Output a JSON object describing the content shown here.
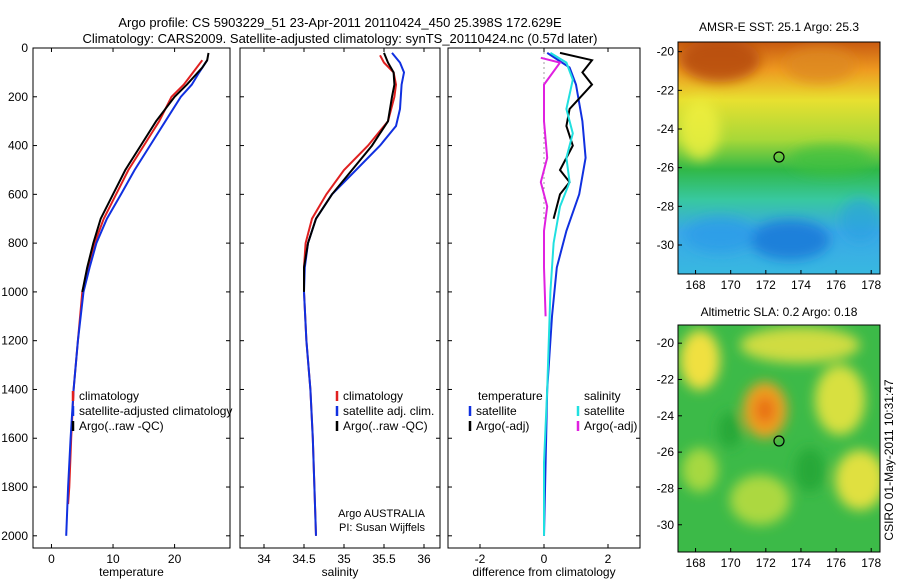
{
  "header": {
    "line1": "Argo profile: CS 5903229_51 23-Apr-2011 20110424_450 25.398S 172.629E",
    "line2": "Climatology: CARS2009. Satellite-adjusted climatology: synTS_20110424.nc (0.57d later)"
  },
  "side_stamp": "CSIRO 01-May-2011 10:31:47",
  "colors": {
    "red": "#e02020",
    "blue": "#1030e0",
    "black": "#000000",
    "cyan": "#20e0e0",
    "magenta": "#e020e0"
  },
  "chart_data": [
    {
      "type": "line",
      "id": "temperature",
      "xlabel": "temperature",
      "ylabel": "",
      "xlim": [
        -3,
        29
      ],
      "ylim": [
        2050,
        0
      ],
      "xticks": [
        0,
        10,
        20
      ],
      "yticks": [
        0,
        200,
        400,
        600,
        800,
        1000,
        1200,
        1400,
        1600,
        1800,
        2000
      ],
      "legend": {
        "position": "lower-right",
        "entries": [
          "climatology",
          "satellite-adjusted climatology",
          "Argo(..raw -QC)"
        ]
      },
      "series": [
        {
          "name": "climatology",
          "color": "red",
          "points": [
            [
              24.5,
              50
            ],
            [
              23,
              100
            ],
            [
              21.5,
              150
            ],
            [
              19.5,
              200
            ],
            [
              17.5,
              300
            ],
            [
              15,
              400
            ],
            [
              12.5,
              500
            ],
            [
              10.5,
              600
            ],
            [
              8.5,
              700
            ],
            [
              7,
              800
            ],
            [
              6,
              900
            ],
            [
              5,
              1000
            ],
            [
              4.3,
              1200
            ],
            [
              3.6,
              1400
            ],
            [
              3.2,
              1600
            ],
            [
              2.9,
              1800
            ],
            [
              2.7,
              1870
            ]
          ]
        },
        {
          "name": "satellite-adjusted climatology",
          "color": "blue",
          "points": [
            [
              25.3,
              50
            ],
            [
              24,
              100
            ],
            [
              22.8,
              150
            ],
            [
              21,
              200
            ],
            [
              18.5,
              300
            ],
            [
              16,
              400
            ],
            [
              13.5,
              500
            ],
            [
              11.3,
              600
            ],
            [
              9,
              700
            ],
            [
              7.3,
              800
            ],
            [
              6.2,
              900
            ],
            [
              5.2,
              1000
            ],
            [
              4.3,
              1200
            ],
            [
              3.6,
              1400
            ],
            [
              3.1,
              1600
            ],
            [
              2.7,
              1800
            ],
            [
              2.4,
              2000
            ]
          ]
        },
        {
          "name": "Argo(..raw -QC)",
          "color": "black",
          "points": [
            [
              25.5,
              20
            ],
            [
              25.3,
              50
            ],
            [
              24.5,
              80
            ],
            [
              22,
              150
            ],
            [
              20,
              200
            ],
            [
              17,
              300
            ],
            [
              14.5,
              400
            ],
            [
              12,
              500
            ],
            [
              10,
              600
            ],
            [
              8,
              700
            ],
            [
              6.8,
              800
            ],
            [
              5.8,
              900
            ],
            [
              5,
              1000
            ]
          ]
        }
      ]
    },
    {
      "type": "line",
      "id": "salinity",
      "xlabel": "salinity",
      "ylabel": "",
      "xlim": [
        33.7,
        36.2
      ],
      "ylim": [
        2050,
        0
      ],
      "xticks": [
        34,
        34.5,
        35,
        35.5,
        36
      ],
      "yticks": [
        0,
        200,
        400,
        600,
        800,
        1000,
        1200,
        1400,
        1600,
        1800,
        2000
      ],
      "legend": {
        "position": "lower-right",
        "entries": [
          "climatology",
          "satellite adj. clim.",
          "Argo(..raw -QC)"
        ]
      },
      "annotation": [
        "Argo AUSTRALIA",
        "PI: Susan Wijffels"
      ],
      "series": [
        {
          "name": "climatology",
          "color": "red",
          "points": [
            [
              35.45,
              30
            ],
            [
              35.5,
              60
            ],
            [
              35.62,
              100
            ],
            [
              35.65,
              150
            ],
            [
              35.63,
              200
            ],
            [
              35.55,
              300
            ],
            [
              35.3,
              400
            ],
            [
              35,
              500
            ],
            [
              34.78,
              600
            ],
            [
              34.6,
              700
            ],
            [
              34.52,
              800
            ],
            [
              34.5,
              900
            ],
            [
              34.5,
              1000
            ],
            [
              34.53,
              1200
            ],
            [
              34.58,
              1400
            ],
            [
              34.61,
              1600
            ],
            [
              34.63,
              1800
            ],
            [
              34.65,
              2000
            ]
          ]
        },
        {
          "name": "satellite adj. clim.",
          "color": "blue",
          "points": [
            [
              35.6,
              20
            ],
            [
              35.7,
              60
            ],
            [
              35.75,
              100
            ],
            [
              35.72,
              150
            ],
            [
              35.7,
              250
            ],
            [
              35.65,
              320
            ],
            [
              35.45,
              400
            ],
            [
              35.15,
              500
            ],
            [
              34.85,
              600
            ],
            [
              34.65,
              700
            ],
            [
              34.55,
              800
            ],
            [
              34.51,
              900
            ],
            [
              34.5,
              1000
            ],
            [
              34.53,
              1200
            ],
            [
              34.58,
              1400
            ],
            [
              34.61,
              1600
            ],
            [
              34.63,
              1800
            ],
            [
              34.65,
              2000
            ]
          ]
        },
        {
          "name": "Argo(..raw -QC)",
          "color": "black",
          "points": [
            [
              35.5,
              20
            ],
            [
              35.55,
              60
            ],
            [
              35.62,
              100
            ],
            [
              35.63,
              150
            ],
            [
              35.6,
              200
            ],
            [
              35.55,
              300
            ],
            [
              35.35,
              400
            ],
            [
              35.1,
              500
            ],
            [
              34.85,
              600
            ],
            [
              34.65,
              700
            ],
            [
              34.55,
              800
            ],
            [
              34.5,
              900
            ],
            [
              34.5,
              1000
            ]
          ]
        }
      ]
    },
    {
      "type": "line",
      "id": "difference",
      "xlabel": "difference from climatology",
      "ylabel": "",
      "xlim": [
        -3,
        3
      ],
      "ylim": [
        2050,
        0
      ],
      "xticks": [
        -2,
        0,
        2
      ],
      "yticks": [
        0,
        200,
        400,
        600,
        800,
        1000,
        1200,
        1400,
        1600,
        1800,
        2000
      ],
      "legend": {
        "position": "lower-center",
        "left_title": "temperature",
        "right_title": "salinity",
        "left_entries": [
          "satellite",
          "Argo(-adj)"
        ],
        "right_entries": [
          "satellite",
          "Argo(-adj)"
        ]
      },
      "series": [
        {
          "name": "temperature satellite",
          "color": "blue",
          "points": [
            [
              0.1,
              20
            ],
            [
              0.8,
              80
            ],
            [
              1,
              150
            ],
            [
              1.2,
              300
            ],
            [
              1.3,
              450
            ],
            [
              1.1,
              600
            ],
            [
              0.7,
              750
            ],
            [
              0.4,
              900
            ],
            [
              0.25,
              1100
            ],
            [
              0.1,
              1400
            ],
            [
              0.05,
              1700
            ],
            [
              0,
              2000
            ]
          ]
        },
        {
          "name": "temperature Argo(-adj)",
          "color": "black",
          "points": [
            [
              0.5,
              20
            ],
            [
              1.5,
              50
            ],
            [
              1.2,
              100
            ],
            [
              1.5,
              150
            ],
            [
              0.8,
              250
            ],
            [
              0.7,
              320
            ],
            [
              0.9,
              400
            ],
            [
              0.5,
              500
            ],
            [
              0.8,
              550
            ],
            [
              0.5,
              600
            ],
            [
              0.3,
              700
            ]
          ]
        },
        {
          "name": "salinity satellite",
          "color": "cyan",
          "points": [
            [
              0.2,
              20
            ],
            [
              0.7,
              60
            ],
            [
              0.9,
              130
            ],
            [
              0.7,
              250
            ],
            [
              0.9,
              350
            ],
            [
              0.7,
              450
            ],
            [
              0.8,
              550
            ],
            [
              0.5,
              650
            ],
            [
              0.3,
              800
            ],
            [
              0.2,
              1000
            ],
            [
              0.1,
              1400
            ],
            [
              0,
              1700
            ],
            [
              0,
              2000
            ]
          ]
        },
        {
          "name": "salinity Argo(-adj)",
          "color": "magenta",
          "points": [
            [
              -0.1,
              40
            ],
            [
              0.5,
              60
            ],
            [
              0,
              150
            ],
            [
              0,
              300
            ],
            [
              0.1,
              450
            ],
            [
              -0.1,
              550
            ],
            [
              0.1,
              650
            ],
            [
              0,
              750
            ],
            [
              0,
              900
            ],
            [
              0.05,
              1100
            ]
          ]
        }
      ]
    },
    {
      "type": "heatmap",
      "id": "sst",
      "title": "AMSR-E SST: 25.1 Argo: 25.3",
      "xlim": [
        167,
        178.5
      ],
      "ylim": [
        -31.5,
        -19.5
      ],
      "xticks": [
        168,
        170,
        172,
        174,
        176,
        178
      ],
      "yticks": [
        -20,
        -22,
        -24,
        -26,
        -28,
        -30
      ],
      "marker": [
        172.63,
        -25.4
      ]
    },
    {
      "type": "heatmap",
      "id": "sla",
      "title": "Altimetric SLA: 0.2 Argo: 0.18",
      "xlim": [
        167,
        178.5
      ],
      "ylim": [
        -31.5,
        -19
      ],
      "xticks": [
        168,
        170,
        172,
        174,
        176,
        178
      ],
      "yticks": [
        -20,
        -22,
        -24,
        -26,
        -28,
        -30
      ],
      "marker": [
        172.63,
        -25.4
      ]
    }
  ]
}
